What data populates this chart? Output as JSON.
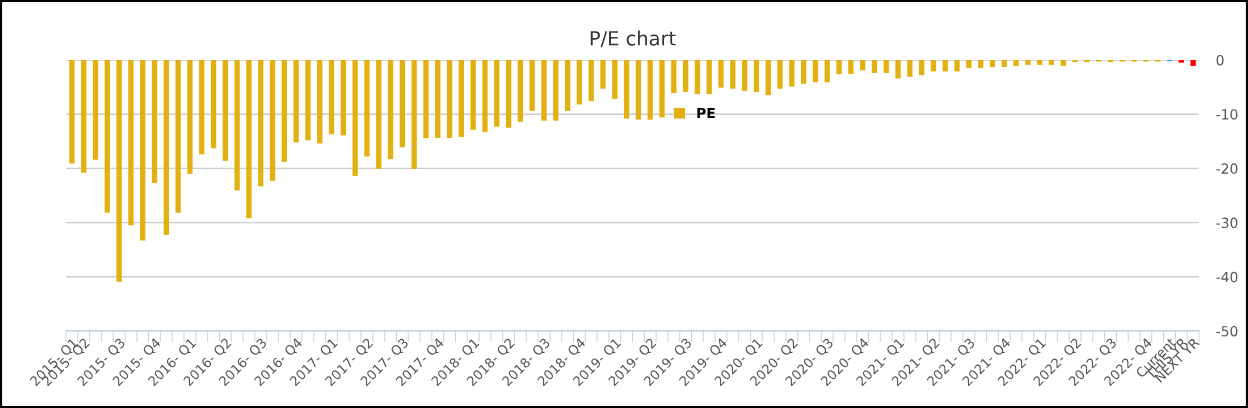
{
  "chart_data": {
    "type": "bar",
    "title": "P/E chart",
    "categories": [
      "2015- Q1",
      "2015- Q2",
      null,
      null,
      "2015- Q3",
      null,
      null,
      "2015- Q4",
      null,
      null,
      "2016- Q1",
      null,
      null,
      "2016- Q2",
      null,
      null,
      "2016- Q3",
      null,
      null,
      "2016- Q4",
      null,
      null,
      "2017- Q1",
      null,
      null,
      "2017- Q2",
      null,
      null,
      "2017- Q3",
      null,
      null,
      "2017- Q4",
      null,
      null,
      "2018- Q1",
      null,
      null,
      "2018- Q2",
      null,
      null,
      "2018- Q3",
      null,
      null,
      "2018- Q4",
      null,
      null,
      "2019- Q1",
      null,
      null,
      "2019- Q2",
      null,
      null,
      "2019- Q3",
      null,
      null,
      "2019- Q4",
      null,
      null,
      "2020- Q1",
      null,
      null,
      "2020- Q2",
      null,
      null,
      "2020- Q3",
      null,
      null,
      "2020- Q4",
      null,
      null,
      "2021- Q1",
      null,
      null,
      "2021- Q2",
      null,
      null,
      "2021- Q3",
      null,
      null,
      "2021- Q4",
      null,
      null,
      "2022- Q1",
      null,
      null,
      "2022- Q2",
      null,
      null,
      "2022- Q3",
      null,
      null,
      "2022- Q4",
      null,
      "Current",
      "THIS YR",
      "NEXT YR"
    ],
    "series": [
      {
        "name": "PE",
        "color": "#e3b011",
        "colors": [
          "#e3b011",
          "#e3b011",
          "#e3b011",
          "#e3b011",
          "#e3b011",
          "#e3b011",
          "#e3b011",
          "#e3b011",
          "#e3b011",
          "#e3b011",
          "#e3b011",
          "#e3b011",
          "#e3b011",
          "#e3b011",
          "#e3b011",
          "#e3b011",
          "#e3b011",
          "#e3b011",
          "#e3b011",
          "#e3b011",
          "#e3b011",
          "#e3b011",
          "#e3b011",
          "#e3b011",
          "#e3b011",
          "#e3b011",
          "#e3b011",
          "#e3b011",
          "#e3b011",
          "#e3b011",
          "#e3b011",
          "#e3b011",
          "#e3b011",
          "#e3b011",
          "#e3b011",
          "#e3b011",
          "#e3b011",
          "#e3b011",
          "#e3b011",
          "#e3b011",
          "#e3b011",
          "#e3b011",
          "#e3b011",
          "#e3b011",
          "#e3b011",
          "#e3b011",
          "#e3b011",
          "#e3b011",
          "#e3b011",
          "#e3b011",
          "#e3b011",
          "#e3b011",
          "#e3b011",
          "#e3b011",
          "#e3b011",
          "#e3b011",
          "#e3b011",
          "#e3b011",
          "#e3b011",
          "#e3b011",
          "#e3b011",
          "#e3b011",
          "#e3b011",
          "#e3b011",
          "#e3b011",
          "#e3b011",
          "#e3b011",
          "#e3b011",
          "#e3b011",
          "#e3b011",
          "#e3b011",
          "#e3b011",
          "#e3b011",
          "#e3b011",
          "#e3b011",
          "#e3b011",
          "#e3b011",
          "#e3b011",
          "#e3b011",
          "#e3b011",
          "#e3b011",
          "#e3b011",
          "#e3b011",
          "#e3b011",
          "#e3b011",
          "#e3b011",
          "#e3b011",
          "#e3b011",
          "#e3b011",
          "#e3b011",
          "#e3b011",
          "#e3b011",
          "#e3b011",
          "#3a8fd0",
          "#ff0000",
          "#ff0000"
        ],
        "values": [
          -19.1,
          -20.8,
          -18.4,
          -28.2,
          -40.9,
          -30.5,
          -33.3,
          -22.7,
          -32.3,
          -28.2,
          -21.0,
          -17.4,
          -16.3,
          -18.6,
          -24.1,
          -29.2,
          -23.3,
          -22.3,
          -18.8,
          -15.2,
          -14.8,
          -15.4,
          -13.7,
          -13.9,
          -21.4,
          -17.8,
          -20.1,
          -18.3,
          -16.1,
          -20.1,
          -14.4,
          -14.4,
          -14.4,
          -14.2,
          -12.9,
          -13.3,
          -12.3,
          -12.5,
          -11.4,
          -9.4,
          -11.2,
          -11.2,
          -9.4,
          -8.2,
          -7.6,
          -5.3,
          -7.2,
          -10.8,
          -11.0,
          -11.0,
          -10.6,
          -6.1,
          -5.9,
          -6.3,
          -6.3,
          -5.1,
          -5.3,
          -5.7,
          -5.9,
          -6.5,
          -5.3,
          -4.9,
          -4.4,
          -4.1,
          -4.1,
          -2.6,
          -2.6,
          -1.9,
          -2.4,
          -2.4,
          -3.4,
          -3.1,
          -2.8,
          -2.1,
          -2.1,
          -2.1,
          -1.5,
          -1.5,
          -1.3,
          -1.3,
          -1.1,
          -0.9,
          -0.9,
          -0.9,
          -1.1,
          -0.4,
          -0.4,
          -0.3,
          -0.4,
          -0.3,
          -0.3,
          -0.3,
          -0.3,
          -0.2,
          -0.5,
          -1.1
        ]
      }
    ],
    "ylim": [
      -50,
      0
    ],
    "yticks": [
      0,
      -10,
      -20,
      -30,
      -40,
      -50
    ],
    "grid": "y",
    "legend": "top"
  }
}
